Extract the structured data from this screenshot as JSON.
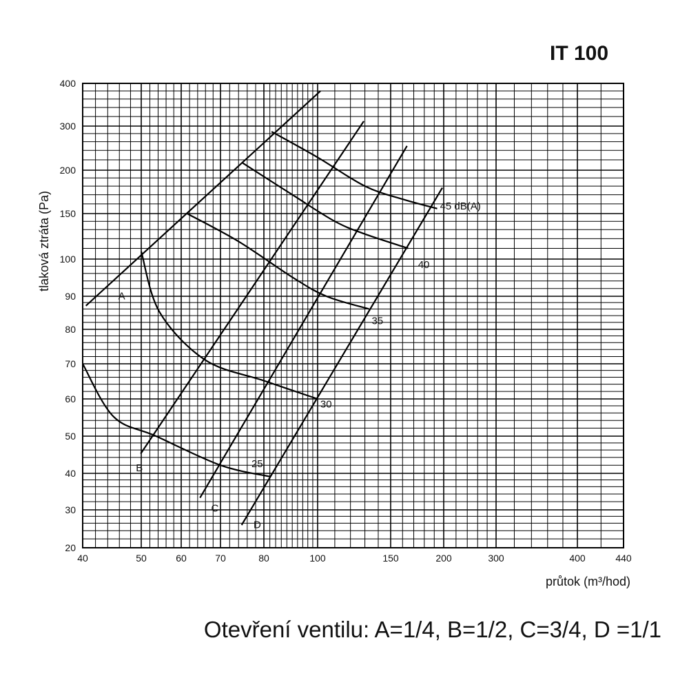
{
  "title": "IT 100",
  "caption": "Otevření ventilu: A=1/4, B=1/2, C=3/4, D =1/1",
  "chart_data": {
    "type": "line",
    "title": "IT 100",
    "xlabel": "průtok (m³/hod)",
    "ylabel": "tlaková ztráta (Pa)",
    "x_scale": "log",
    "y_scale": "log",
    "xlim": [
      40,
      440
    ],
    "ylim": [
      20,
      400
    ],
    "grid": true,
    "x_ticks": [
      40,
      50,
      60,
      70,
      80,
      100,
      150,
      200,
      300,
      400,
      440
    ],
    "y_ticks": [
      20,
      30,
      40,
      50,
      60,
      70,
      80,
      90,
      100,
      150,
      200,
      300,
      400
    ],
    "valve_lines": [
      {
        "name": "A",
        "points": [
          [
            40.5,
            87
          ],
          [
            101.6,
            380
          ]
        ]
      },
      {
        "name": "B",
        "points": [
          [
            49.9,
            45
          ],
          [
            129.2,
            310
          ]
        ]
      },
      {
        "name": "C",
        "points": [
          [
            64.6,
            33
          ],
          [
            163.9,
            250
          ]
        ]
      },
      {
        "name": "D",
        "points": [
          [
            74.7,
            25.5
          ],
          [
            198.5,
            178
          ]
        ]
      }
    ],
    "noise_curves": [
      {
        "name": "25",
        "points": [
          [
            40,
            70
          ],
          [
            45,
            55
          ],
          [
            53.5,
            50
          ],
          [
            70,
            42
          ],
          [
            82,
            39
          ]
        ]
      },
      {
        "name": "30",
        "points": [
          [
            50,
            107
          ],
          [
            54.4,
            85
          ],
          [
            66,
            71
          ],
          [
            80,
            65
          ],
          [
            100,
            60
          ]
        ]
      },
      {
        "name": "35",
        "points": [
          [
            61.4,
            150
          ],
          [
            74,
            117
          ],
          [
            90,
            95
          ],
          [
            105,
            90
          ],
          [
            133,
            86
          ]
        ]
      },
      {
        "name": "40",
        "points": [
          [
            74.7,
            215
          ],
          [
            90,
            170
          ],
          [
            110,
            140
          ],
          [
            130,
            125
          ],
          [
            165,
            110
          ]
        ]
      },
      {
        "name": "45 dB(A)",
        "points": [
          [
            82.6,
            285
          ],
          [
            100,
            225
          ],
          [
            130,
            180
          ],
          [
            160,
            165
          ],
          [
            193,
            155
          ]
        ]
      }
    ]
  }
}
